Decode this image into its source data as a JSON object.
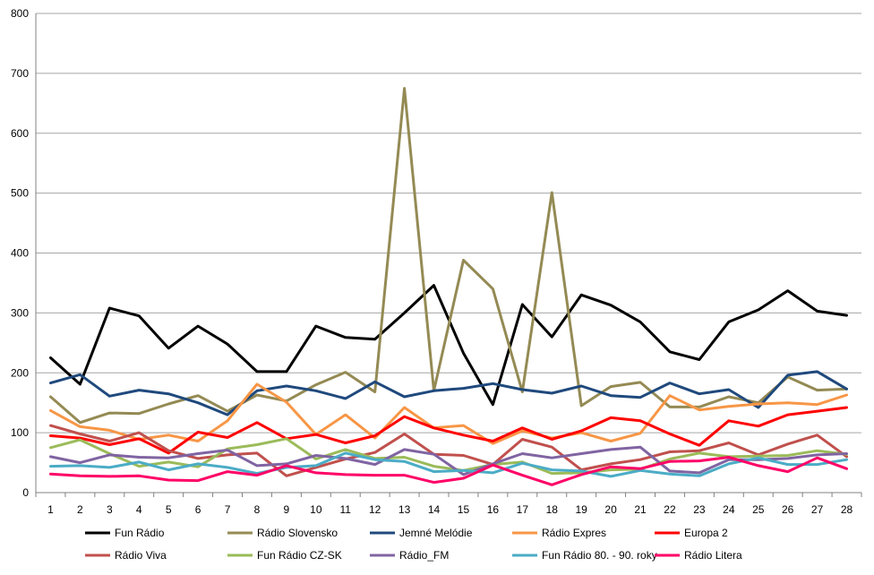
{
  "chart_data": {
    "type": "line",
    "title": "",
    "xlabel": "",
    "ylabel": "",
    "x": [
      "1",
      "2",
      "3",
      "4",
      "5",
      "6",
      "7",
      "8",
      "9",
      "10",
      "11",
      "12",
      "13",
      "14",
      "15",
      "16",
      "17",
      "18",
      "19",
      "20",
      "21",
      "22",
      "23",
      "24",
      "25",
      "26",
      "27",
      "28"
    ],
    "ylim": [
      0,
      800
    ],
    "yticks": [
      0,
      100,
      200,
      300,
      400,
      500,
      600,
      700,
      800
    ],
    "grid": "horizontal",
    "legend_position": "bottom",
    "series": [
      {
        "name": "Fun Rádio",
        "color": "#000000",
        "values": [
          225,
          181,
          308,
          295,
          241,
          278,
          248,
          202,
          202,
          278,
          259,
          256,
          300,
          346,
          233,
          147,
          314,
          260,
          330,
          313,
          285,
          235,
          222,
          285,
          305,
          337,
          303,
          296
        ]
      },
      {
        "name": "Rádio Slovensko",
        "color": "#948a54",
        "values": [
          160,
          117,
          133,
          132,
          148,
          162,
          136,
          163,
          153,
          180,
          201,
          168,
          675,
          170,
          388,
          340,
          168,
          501,
          145,
          177,
          184,
          143,
          143,
          160,
          150,
          193,
          171,
          173
        ]
      },
      {
        "name": "Jemné Melódie",
        "color": "#1f497d",
        "values": [
          183,
          197,
          161,
          171,
          165,
          150,
          130,
          170,
          178,
          170,
          157,
          185,
          160,
          170,
          174,
          182,
          172,
          166,
          178,
          162,
          159,
          183,
          165,
          172,
          142,
          196,
          202,
          173
        ]
      },
      {
        "name": "Rádio Expres",
        "color": "#f79646",
        "values": [
          137,
          110,
          104,
          89,
          96,
          86,
          120,
          181,
          151,
          97,
          130,
          91,
          142,
          108,
          112,
          82,
          103,
          91,
          100,
          86,
          99,
          162,
          138,
          144,
          148,
          150,
          147,
          163
        ]
      },
      {
        "name": "Europa 2",
        "color": "#ff0000",
        "values": [
          95,
          91,
          80,
          90,
          66,
          101,
          92,
          117,
          90,
          97,
          83,
          95,
          127,
          108,
          96,
          86,
          108,
          89,
          103,
          125,
          120,
          98,
          79,
          120,
          111,
          130,
          136,
          142
        ]
      },
      {
        "name": "Rádio Viva",
        "color": "#c0504d",
        "values": [
          112,
          98,
          86,
          100,
          70,
          57,
          63,
          66,
          28,
          42,
          56,
          67,
          98,
          64,
          62,
          47,
          89,
          76,
          38,
          48,
          55,
          68,
          70,
          83,
          63,
          81,
          96,
          60
        ]
      },
      {
        "name": "Fun Rádio CZ-SK",
        "color": "#9bbb59",
        "values": [
          75,
          88,
          65,
          44,
          51,
          43,
          73,
          80,
          90,
          56,
          72,
          57,
          59,
          44,
          37,
          47,
          51,
          32,
          33,
          38,
          39,
          56,
          66,
          60,
          61,
          62,
          70,
          64
        ]
      },
      {
        "name": "Rádio_FM",
        "color": "#8064a2",
        "values": [
          60,
          50,
          63,
          59,
          58,
          65,
          71,
          45,
          48,
          62,
          57,
          47,
          72,
          64,
          30,
          48,
          65,
          58,
          65,
          72,
          76,
          36,
          33,
          55,
          55,
          57,
          63,
          65
        ]
      },
      {
        "name": "Fun Rádio 80. - 90. roky",
        "color": "#4bacc6",
        "values": [
          44,
          45,
          42,
          51,
          38,
          48,
          42,
          32,
          42,
          45,
          66,
          55,
          52,
          35,
          37,
          33,
          49,
          38,
          36,
          27,
          37,
          31,
          28,
          48,
          58,
          47,
          47,
          55
        ]
      },
      {
        "name": "Rádio Litera",
        "color": "#ff0066",
        "values": [
          31,
          28,
          27,
          28,
          21,
          20,
          35,
          29,
          45,
          33,
          30,
          29,
          29,
          17,
          24,
          46,
          29,
          13,
          30,
          43,
          40,
          52,
          53,
          59,
          45,
          35,
          58,
          40
        ]
      }
    ]
  }
}
